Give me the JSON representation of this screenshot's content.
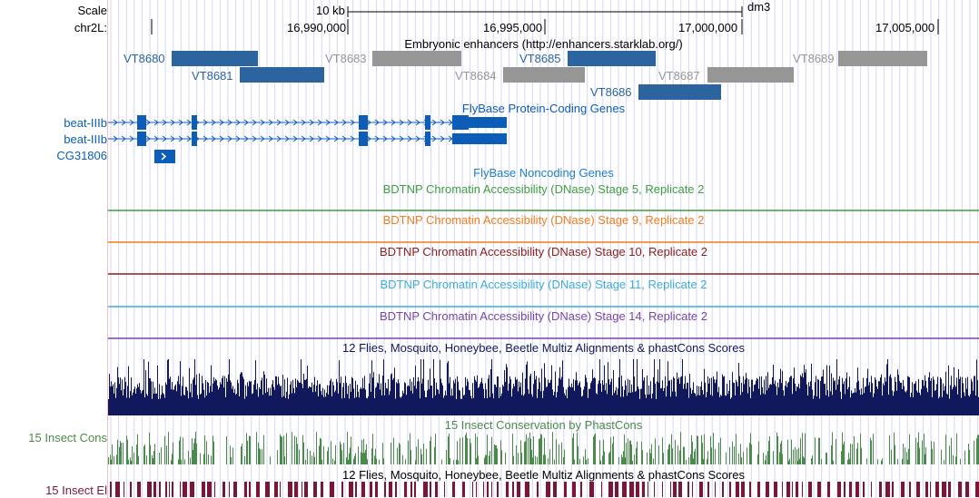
{
  "ruler": {
    "scale_label": "Scale",
    "chrom_label": "chr2L:",
    "scale_bar": "10 kb",
    "assembly": "dm3",
    "ticks": [
      "16,990,000",
      "16,995,000",
      "17,000,000",
      "17,005,000"
    ]
  },
  "tracks": {
    "enhancers": {
      "title": "Embryonic enhancers (http://enhancers.starklab.org/)",
      "items": [
        {
          "name": "VT8680",
          "color": "#2c64a0"
        },
        {
          "name": "VT8681",
          "color": "#2c64a0"
        },
        {
          "name": "VT8683",
          "color": "#969696"
        },
        {
          "name": "VT8684",
          "color": "#969696"
        },
        {
          "name": "VT8685",
          "color": "#2c64a0"
        },
        {
          "name": "VT8687",
          "color": "#969696"
        },
        {
          "name": "VT8686",
          "color": "#2c64a0"
        },
        {
          "name": "VT8689",
          "color": "#969696"
        }
      ]
    },
    "protein_genes": {
      "title": "FlyBase Protein-Coding Genes",
      "color": "#0c5db8",
      "genes": [
        "beat-IIIb",
        "beat-IIIb",
        "CG31806"
      ]
    },
    "noncoding": {
      "title": "FlyBase Noncoding Genes",
      "color": "#1c82c8"
    },
    "dnase": [
      {
        "title": "BDTNP Chromatin Accessibility (DNase) Stage 5, Replicate 2",
        "color": "#3f9e3f"
      },
      {
        "title": "BDTNP Chromatin Accessibility (DNase) Stage 9, Replicate 2",
        "color": "#f07d1e"
      },
      {
        "title": "BDTNP Chromatin Accessibility (DNase) Stage 10, Replicate 2",
        "color": "#8c1c1c"
      },
      {
        "title": "BDTNP Chromatin Accessibility (DNase) Stage 11, Replicate 2",
        "color": "#3cacdc"
      },
      {
        "title": "BDTNP Chromatin Accessibility (DNase) Stage 14, Replicate 2",
        "color": "#7845a8"
      }
    ],
    "multiz": {
      "title": "12 Flies, Mosquito, Honeybee, Beetle Multiz Alignments & phastCons Scores",
      "color": "#12185c"
    },
    "phastcons": {
      "title": "15 Insect Conservation by PhastCons",
      "label": "15 Insect Cons",
      "axis_max": "1",
      "axis_min": "0",
      "color": "#4a8a4a"
    },
    "elements": {
      "title": "12 Flies, Mosquito, Honeybee, Beetle Multiz Alignments & phastCons Scores",
      "label": "15 Insect El",
      "color": "#7a1636"
    }
  }
}
